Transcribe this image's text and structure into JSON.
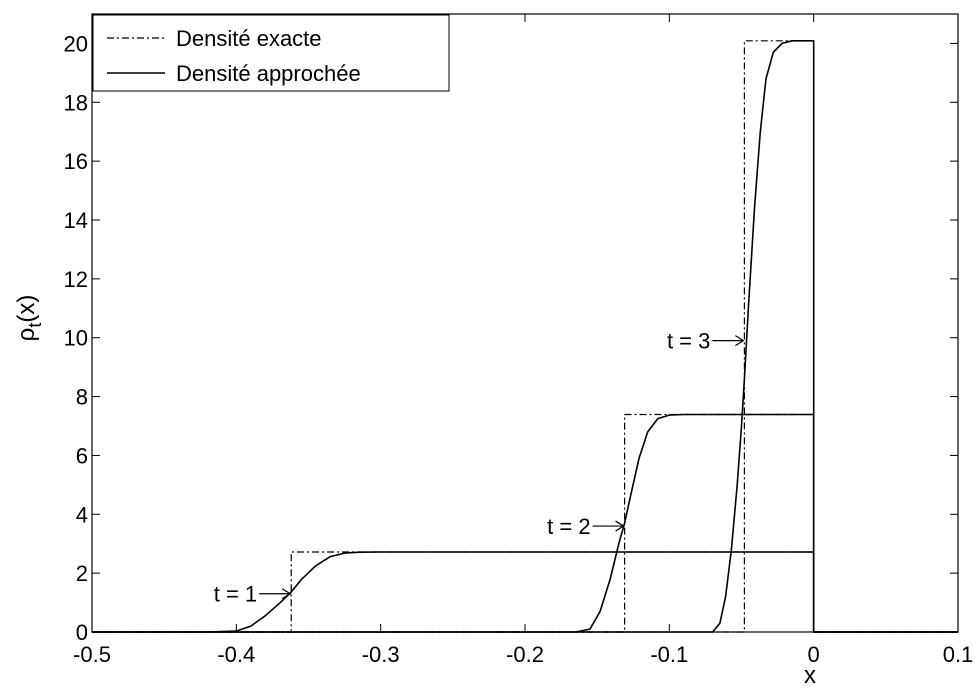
{
  "chart_data": {
    "type": "line",
    "title": "",
    "xlabel": "x",
    "ylabel_main": "ρ",
    "ylabel_sub": "t",
    "ylabel_tail": "(x)",
    "xlim": [
      -0.5,
      0.1
    ],
    "ylim": [
      0,
      21
    ],
    "x_ticks": [
      -0.5,
      -0.4,
      -0.3,
      -0.2,
      -0.1,
      0,
      0.1
    ],
    "x_tick_labels": [
      "-0.5",
      "-0.4",
      "-0.3",
      "-0.2",
      "-0.1",
      "0",
      "0.1"
    ],
    "y_ticks": [
      0,
      2,
      4,
      6,
      8,
      10,
      12,
      14,
      16,
      18,
      20
    ],
    "y_tick_labels": [
      "0",
      "2",
      "4",
      "6",
      "8",
      "10",
      "12",
      "14",
      "16",
      "18",
      "20"
    ],
    "grid": false,
    "legend_position": "top-left",
    "legend": [
      {
        "label": "Densité exacte",
        "style": "dashdot"
      },
      {
        "label": "Densité approchée",
        "style": "solid"
      }
    ],
    "series": [
      {
        "name": "Densité exacte",
        "time": "t = 1",
        "style": "dashdot",
        "x": [
          -0.5,
          -0.362,
          -0.362,
          0,
          0,
          0.1
        ],
        "y": [
          0,
          0,
          2.72,
          2.72,
          0,
          0
        ]
      },
      {
        "name": "Densité exacte",
        "time": "t = 2",
        "style": "dashdot",
        "x": [
          -0.5,
          -0.131,
          -0.131,
          0,
          0,
          0.1
        ],
        "y": [
          0,
          0,
          7.39,
          7.39,
          0,
          0
        ]
      },
      {
        "name": "Densité exacte",
        "time": "t = 3",
        "style": "dashdot",
        "x": [
          -0.5,
          -0.048,
          -0.048,
          0,
          0,
          0.1
        ],
        "y": [
          0,
          0,
          20.09,
          20.09,
          0,
          0
        ]
      },
      {
        "name": "Densité approchée",
        "time": "t = 1",
        "style": "solid",
        "x": [
          -0.5,
          -0.42,
          -0.4,
          -0.39,
          -0.38,
          -0.37,
          -0.362,
          -0.355,
          -0.345,
          -0.335,
          -0.325,
          -0.315,
          -0.3,
          0,
          0,
          0.1
        ],
        "y": [
          0,
          0,
          0.03,
          0.2,
          0.55,
          0.98,
          1.36,
          1.78,
          2.25,
          2.56,
          2.68,
          2.71,
          2.72,
          2.72,
          0,
          0
        ]
      },
      {
        "name": "Densité approchée",
        "time": "t = 2",
        "style": "solid",
        "x": [
          -0.5,
          -0.165,
          -0.155,
          -0.148,
          -0.141,
          -0.135,
          -0.131,
          -0.127,
          -0.121,
          -0.115,
          -0.108,
          -0.1,
          -0.09,
          0,
          0,
          0.1
        ],
        "y": [
          0,
          0,
          0.1,
          0.7,
          1.8,
          3.0,
          3.7,
          4.6,
          5.9,
          6.8,
          7.25,
          7.37,
          7.39,
          7.39,
          0,
          0
        ]
      },
      {
        "name": "Densité approchée",
        "time": "t = 3",
        "style": "solid",
        "x": [
          -0.5,
          -0.07,
          -0.065,
          -0.061,
          -0.057,
          -0.053,
          -0.05,
          -0.048,
          -0.045,
          -0.041,
          -0.037,
          -0.033,
          -0.028,
          -0.022,
          -0.015,
          0,
          0,
          0.1
        ],
        "y": [
          0,
          0,
          0.3,
          1.2,
          2.8,
          5.0,
          7.0,
          8.6,
          11.2,
          14.4,
          17.0,
          18.8,
          19.7,
          20.0,
          20.09,
          20.09,
          0,
          0
        ]
      }
    ],
    "annotations": [
      {
        "text": "t = 1",
        "x": -0.362,
        "y": 1.3
      },
      {
        "text": "t = 2",
        "x": -0.131,
        "y": 3.6
      },
      {
        "text": "t = 3",
        "x": -0.048,
        "y": 9.9
      }
    ]
  }
}
